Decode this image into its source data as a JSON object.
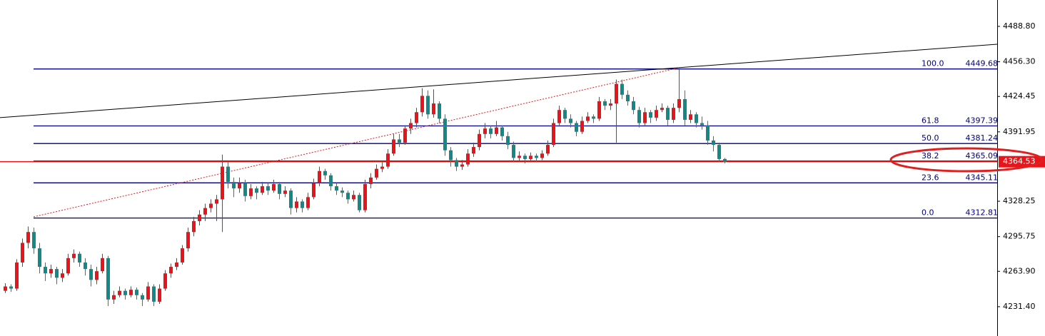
{
  "chart_data": {
    "type": "candlestick",
    "xlim": [
      -0.875,
      173.75
    ],
    "ylim": [
      4204.5,
      4513.0
    ],
    "yticks": [
      {
        "value": 4488.8,
        "label": "4488.80"
      },
      {
        "value": 4456.3,
        "label": "4456.30"
      },
      4424.45,
      4391.95,
      4328.25,
      4295.75,
      {
        "value": 4263.9,
        "label": "4263.90"
      },
      {
        "value": 4231.4,
        "label": "4231.40"
      }
    ],
    "up_color": "#e8141b",
    "down_color": "#168787",
    "ohlc": [
      [
        4246,
        4253,
        4244,
        4250
      ],
      [
        4250,
        4252,
        4245,
        4248
      ],
      [
        4248,
        4275,
        4246,
        4272
      ],
      [
        4272,
        4294,
        4268,
        4290
      ],
      [
        4290,
        4305,
        4285,
        4300
      ],
      [
        4300,
        4304,
        4280,
        4285
      ],
      [
        4285,
        4290,
        4262,
        4268
      ],
      [
        4268,
        4272,
        4255,
        4262
      ],
      [
        4262,
        4270,
        4258,
        4266
      ],
      [
        4266,
        4268,
        4252,
        4258
      ],
      [
        4258,
        4266,
        4254,
        4262
      ],
      [
        4262,
        4280,
        4260,
        4276
      ],
      [
        4276,
        4284,
        4272,
        4280
      ],
      [
        4280,
        4282,
        4268,
        4272
      ],
      [
        4272,
        4276,
        4260,
        4266
      ],
      [
        4266,
        4270,
        4250,
        4256
      ],
      [
        4256,
        4268,
        4252,
        4264
      ],
      [
        4264,
        4280,
        4262,
        4276
      ],
      [
        4276,
        4278,
        4232,
        4238
      ],
      [
        4238,
        4246,
        4234,
        4242
      ],
      [
        4242,
        4250,
        4240,
        4246
      ],
      [
        4246,
        4248,
        4238,
        4242
      ],
      [
        4242,
        4250,
        4240,
        4247
      ],
      [
        4247,
        4249,
        4238,
        4242
      ],
      [
        4242,
        4244,
        4232,
        4238
      ],
      [
        4238,
        4254,
        4236,
        4250
      ],
      [
        4250,
        4252,
        4232,
        4236
      ],
      [
        4236,
        4252,
        4234,
        4248
      ],
      [
        4248,
        4265,
        4246,
        4262
      ],
      [
        4262,
        4271,
        4258,
        4268
      ],
      [
        4268,
        4276,
        4265,
        4272
      ],
      [
        4272,
        4288,
        4270,
        4285
      ],
      [
        4285,
        4304,
        4282,
        4300
      ],
      [
        4300,
        4314,
        4296,
        4310
      ],
      [
        4310,
        4320,
        4306,
        4316
      ],
      [
        4316,
        4326,
        4310,
        4322
      ],
      [
        4322,
        4330,
        4318,
        4326
      ],
      [
        4326,
        4334,
        4310,
        4330
      ],
      [
        4330,
        4371,
        4300,
        4360
      ],
      [
        4360,
        4364,
        4340,
        4346
      ],
      [
        4346,
        4350,
        4332,
        4340
      ],
      [
        4340,
        4350,
        4336,
        4345
      ],
      [
        4345,
        4348,
        4328,
        4333
      ],
      [
        4333,
        4344,
        4330,
        4340
      ],
      [
        4340,
        4342,
        4330,
        4336
      ],
      [
        4336,
        4346,
        4334,
        4342
      ],
      [
        4342,
        4345,
        4334,
        4338
      ],
      [
        4338,
        4348,
        4336,
        4344
      ],
      [
        4344,
        4346,
        4330,
        4335
      ],
      [
        4335,
        4342,
        4332,
        4338
      ],
      [
        4338,
        4340,
        4316,
        4322
      ],
      [
        4322,
        4332,
        4318,
        4328
      ],
      [
        4328,
        4330,
        4318,
        4322
      ],
      [
        4322,
        4336,
        4320,
        4332
      ],
      [
        4332,
        4349,
        4330,
        4345
      ],
      [
        4345,
        4360,
        4342,
        4356
      ],
      [
        4356,
        4358,
        4348,
        4352
      ],
      [
        4352,
        4354,
        4338,
        4342
      ],
      [
        4342,
        4345,
        4334,
        4338
      ],
      [
        4338,
        4341,
        4332,
        4336
      ],
      [
        4336,
        4338,
        4326,
        4330
      ],
      [
        4330,
        4338,
        4328,
        4334
      ],
      [
        4334,
        4336,
        4318,
        4320
      ],
      [
        4320,
        4348,
        4318,
        4344
      ],
      [
        4344,
        4354,
        4340,
        4350
      ],
      [
        4350,
        4362,
        4348,
        4358
      ],
      [
        4358,
        4364,
        4355,
        4360
      ],
      [
        4360,
        4376,
        4358,
        4372
      ],
      [
        4372,
        4390,
        4370,
        4385
      ],
      [
        4385,
        4390,
        4378,
        4382
      ],
      [
        4382,
        4398,
        4380,
        4395
      ],
      [
        4395,
        4404,
        4390,
        4400
      ],
      [
        4400,
        4414,
        4396,
        4410
      ],
      [
        4410,
        4432,
        4406,
        4425
      ],
      [
        4425,
        4430,
        4404,
        4408
      ],
      [
        4408,
        4431,
        4405,
        4418
      ],
      [
        4418,
        4420,
        4400,
        4404
      ],
      [
        4404,
        4408,
        4370,
        4375
      ],
      [
        4375,
        4378,
        4360,
        4366
      ],
      [
        4366,
        4368,
        4356,
        4360
      ],
      [
        4360,
        4366,
        4357,
        4362
      ],
      [
        4362,
        4376,
        4360,
        4372
      ],
      [
        4372,
        4382,
        4369,
        4378
      ],
      [
        4378,
        4394,
        4375,
        4390
      ],
      [
        4390,
        4400,
        4386,
        4395
      ],
      [
        4395,
        4398,
        4386,
        4390
      ],
      [
        4390,
        4402,
        4388,
        4396
      ],
      [
        4396,
        4398,
        4384,
        4388
      ],
      [
        4388,
        4392,
        4376,
        4380
      ],
      [
        4380,
        4383,
        4364,
        4368
      ],
      [
        4368,
        4374,
        4365,
        4370
      ],
      [
        4370,
        4372,
        4363,
        4367
      ],
      [
        4367,
        4373,
        4364,
        4370
      ],
      [
        4370,
        4372,
        4364,
        4368
      ],
      [
        4368,
        4375,
        4366,
        4372
      ],
      [
        4372,
        4384,
        4370,
        4380
      ],
      [
        4380,
        4404,
        4378,
        4400
      ],
      [
        4400,
        4416,
        4398,
        4412
      ],
      [
        4412,
        4414,
        4400,
        4404
      ],
      [
        4404,
        4408,
        4396,
        4400
      ],
      [
        4400,
        4402,
        4388,
        4392
      ],
      [
        4392,
        4406,
        4390,
        4402
      ],
      [
        4402,
        4410,
        4400,
        4406
      ],
      [
        4406,
        4408,
        4400,
        4404
      ],
      [
        4404,
        4424,
        4402,
        4420
      ],
      [
        4420,
        4422,
        4412,
        4416
      ],
      [
        4416,
        4422,
        4412,
        4418
      ],
      [
        4418,
        4440,
        4382,
        4436
      ],
      [
        4436,
        4440,
        4422,
        4426
      ],
      [
        4426,
        4430,
        4416,
        4420
      ],
      [
        4420,
        4424,
        4408,
        4412
      ],
      [
        4412,
        4415,
        4396,
        4400
      ],
      [
        4400,
        4414,
        4398,
        4410
      ],
      [
        4410,
        4412,
        4400,
        4405
      ],
      [
        4405,
        4416,
        4402,
        4412
      ],
      [
        4412,
        4418,
        4410,
        4414
      ],
      [
        4414,
        4416,
        4398,
        4403
      ],
      [
        4403,
        4418,
        4400,
        4414
      ],
      [
        4414,
        4451,
        4410,
        4422
      ],
      [
        4422,
        4430,
        4398,
        4403
      ],
      [
        4403,
        4412,
        4400,
        4408
      ],
      [
        4408,
        4410,
        4396,
        4400
      ],
      [
        4400,
        4406,
        4394,
        4398
      ],
      [
        4398,
        4402,
        4380,
        4384
      ],
      [
        4384,
        4388,
        4374,
        4380
      ],
      [
        4380,
        4382,
        4364,
        4367
      ],
      [
        4367,
        4368,
        4363,
        4364.53
      ]
    ],
    "fib": {
      "color": "#000080",
      "start": 5,
      "levels": [
        {
          "level": {
            "value": 100,
            "label": "100.0"
          },
          "price": 4449.68
        },
        {
          "level": 61.8,
          "price": 4397.39
        },
        {
          "level": {
            "value": 50,
            "label": "50.0"
          },
          "price": 4381.24
        },
        {
          "level": 38.2,
          "price": 4365.09
        },
        {
          "level": 23.6,
          "price": 4345.11
        },
        {
          "level": {
            "value": 0,
            "label": "0.0"
          },
          "price": 4312.81
        }
      ]
    },
    "trendlines": [
      {
        "color": "#000000",
        "dash": false,
        "points": [
          [
            -0.875,
            4405.0
          ],
          [
            173.75,
            4472.4
          ]
        ]
      },
      {
        "color": "#e8141b",
        "dash": true,
        "points": [
          [
            5,
            4313.9
          ],
          [
            118,
            4450.8
          ]
        ]
      }
    ],
    "last_price": 4364.53,
    "last_color": "#e8141b"
  }
}
